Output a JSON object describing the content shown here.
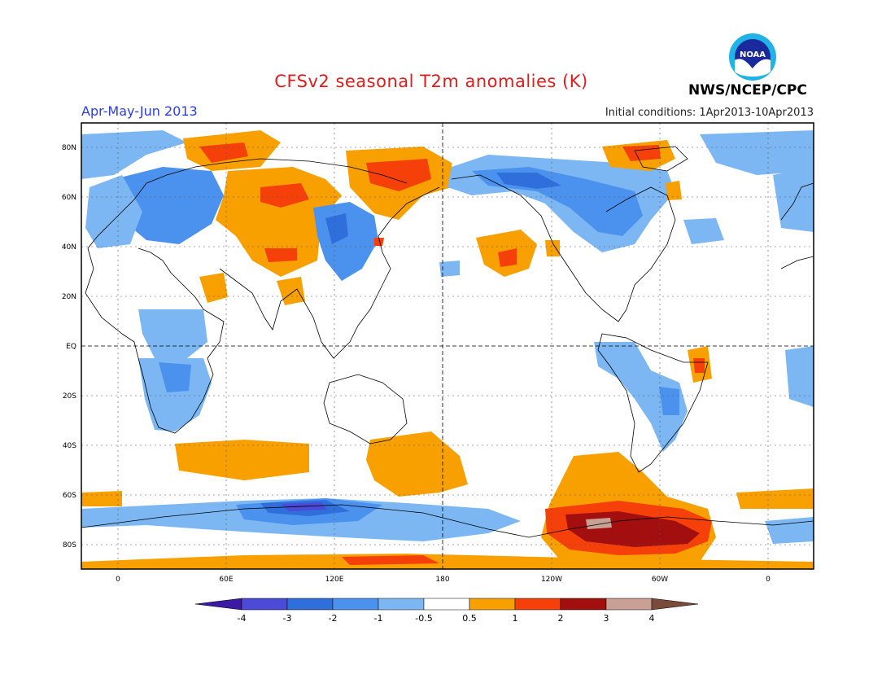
{
  "header": {
    "title": "CFSv2 seasonal T2m anomalies (K)",
    "period": "Apr-May-Jun 2013",
    "initial_conditions": "Initial conditions: 1Apr2013-10Apr2013",
    "agency": "NWS/NCEP/CPC",
    "logo_text": "NOAA",
    "logo_icon": "noaa-logo-icon"
  },
  "map": {
    "lat_labels": [
      "80N",
      "60N",
      "40N",
      "20N",
      "EQ",
      "20S",
      "40S",
      "60S",
      "80S"
    ],
    "lon_labels": [
      "0",
      "60E",
      "120E",
      "180",
      "120W",
      "60W",
      "0"
    ]
  },
  "colorbar": {
    "labels": [
      "-4",
      "-3",
      "-2",
      "-1",
      "-0.5",
      "0.5",
      "1",
      "2",
      "3",
      "4"
    ],
    "colors": [
      "#3a1aa3",
      "#4b4bd8",
      "#2f6fdc",
      "#4b92ee",
      "#7cb7f4",
      "#ffffff",
      "#f8a000",
      "#f5400a",
      "#a30e0e",
      "#c8a094",
      "#7a4a3a"
    ]
  },
  "colors": {
    "warm_1": "#f8a000",
    "warm_2": "#f5400a",
    "warm_3": "#a30e0e",
    "warm_4": "#c8a094",
    "cool_1": "#7cb7f4",
    "cool_2": "#4b92ee",
    "cool_3": "#2f6fdc",
    "cool_4": "#4b4bd8"
  }
}
